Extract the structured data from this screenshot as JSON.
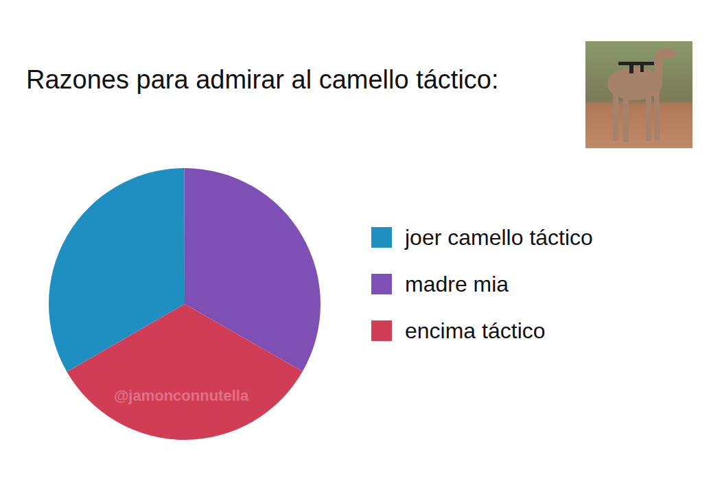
{
  "chart_data": {
    "type": "pie",
    "title": "Razones para admirar al camello táctico:",
    "categories": [
      "joer camello táctico",
      "madre mia",
      "encima táctico"
    ],
    "values": [
      33.3,
      33.3,
      33.4
    ],
    "colors": [
      "#1f8fc1",
      "#7e4fb4",
      "#d23d56"
    ],
    "legend": "right",
    "annotations": [
      "@jamonconnutella"
    ]
  }
}
